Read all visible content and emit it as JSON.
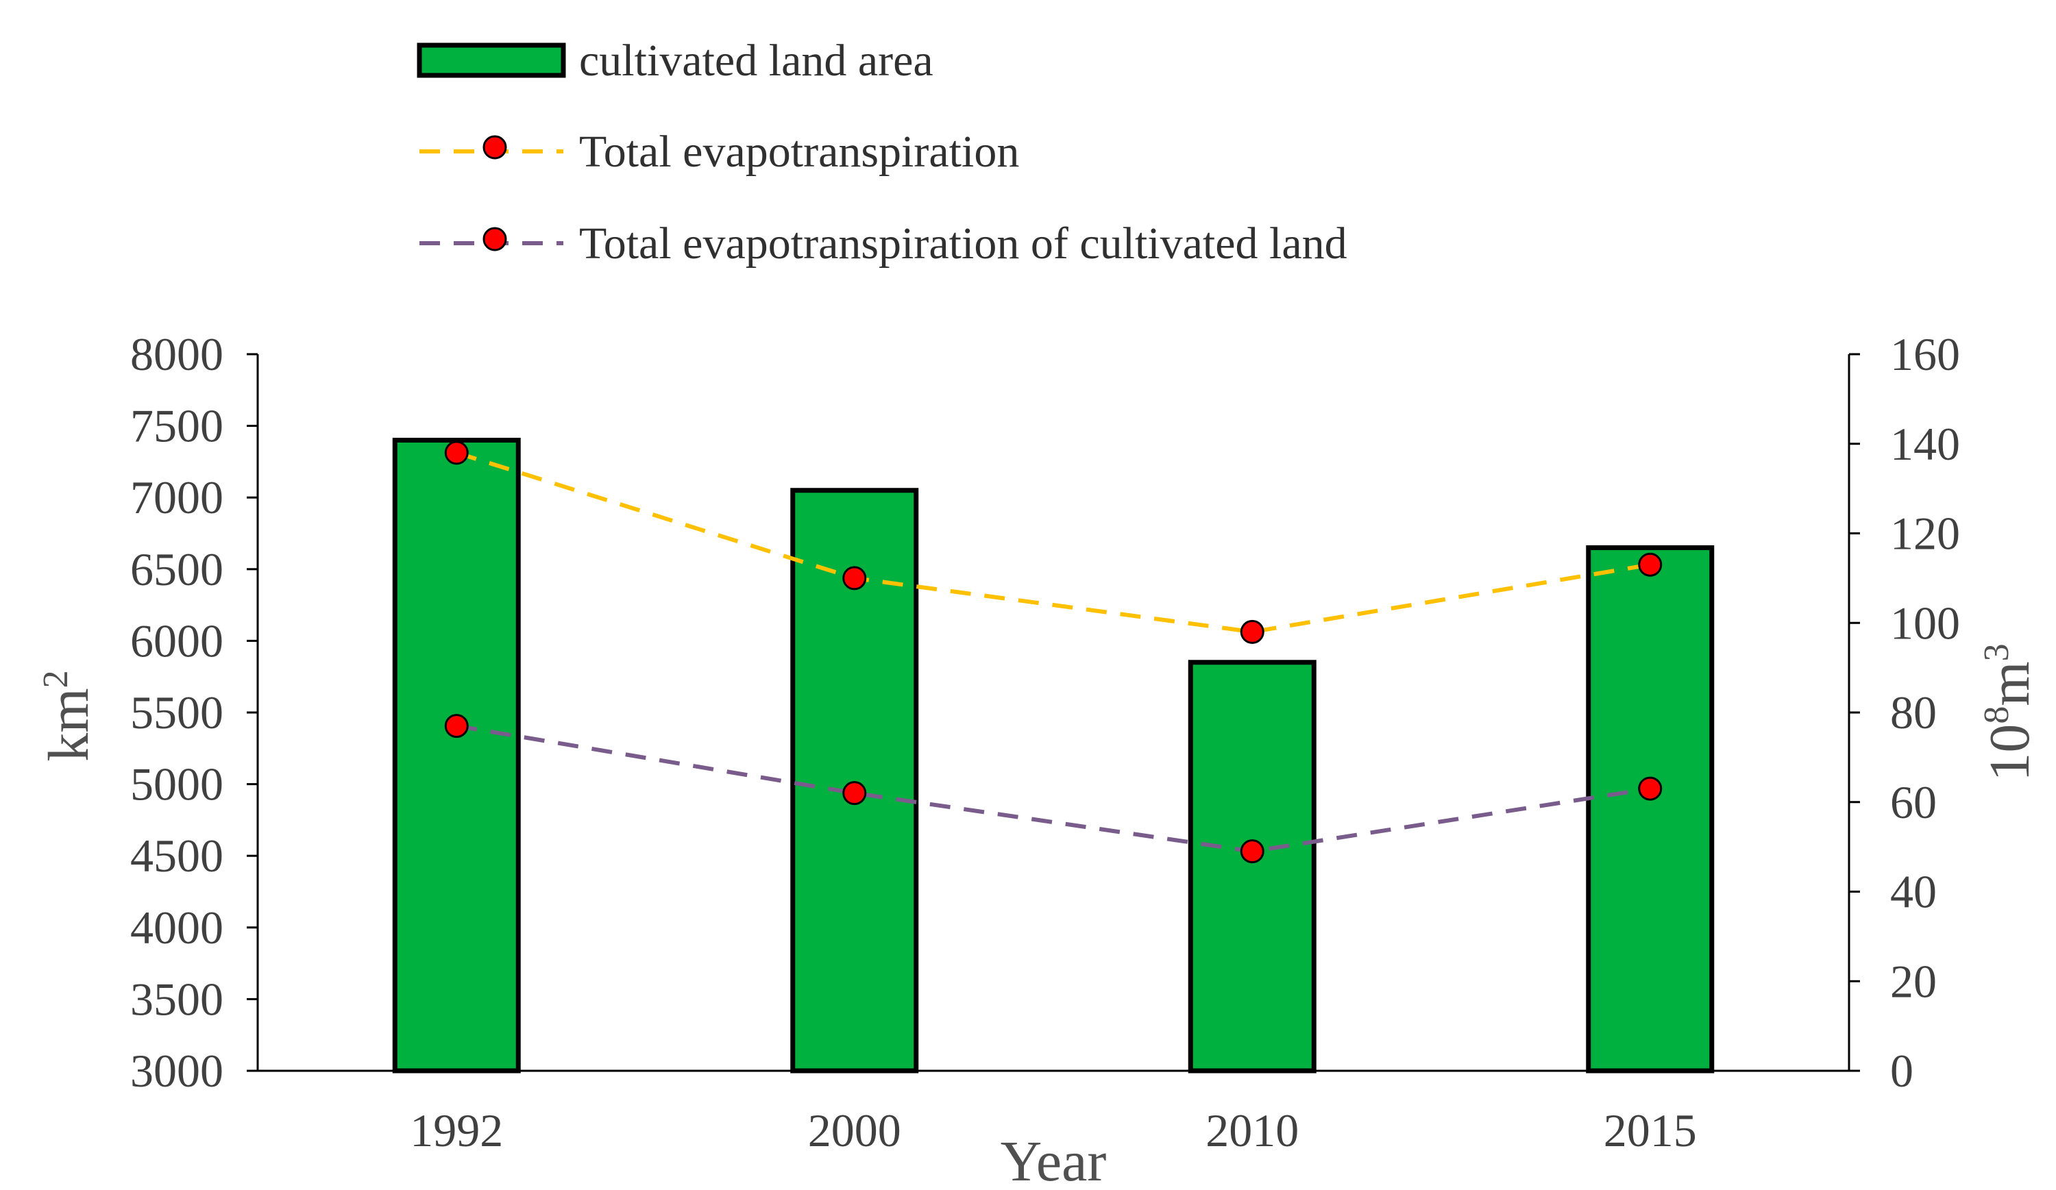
{
  "chart_data": {
    "type": "bar",
    "title": "",
    "categories": [
      "1992",
      "2000",
      "2010",
      "2015"
    ],
    "xlabel": "Year",
    "ylabel": "km",
    "ylabel_sup": "2",
    "y2label": "10",
    "y2label_sup1": "8",
    "y2label_mid": "m",
    "y2label_sup2": "3",
    "ylim": [
      3000,
      8000
    ],
    "yticks": [
      "3000",
      "3500",
      "4000",
      "4500",
      "5000",
      "5500",
      "6000",
      "6500",
      "7000",
      "7500",
      "8000"
    ],
    "y2lim": [
      0,
      160
    ],
    "y2ticks": [
      "0",
      "20",
      "40",
      "60",
      "80",
      "100",
      "120",
      "140",
      "160"
    ],
    "series": [
      {
        "name": "cultivated land area",
        "kind": "bar",
        "axis": "left",
        "color": "#00b140",
        "values": [
          7400,
          7050,
          5850,
          6650
        ]
      },
      {
        "name": "Total evapotranspiration",
        "kind": "line",
        "axis": "right",
        "color": "#ffc000",
        "marker_color": "#ff0000",
        "values": [
          138,
          110,
          98,
          113
        ]
      },
      {
        "name": "Total evapotranspiration of cultivated land",
        "kind": "line",
        "axis": "right",
        "color": "#7a5c8c",
        "marker_color": "#ff0000",
        "values": [
          77,
          62,
          49,
          63
        ]
      }
    ]
  }
}
